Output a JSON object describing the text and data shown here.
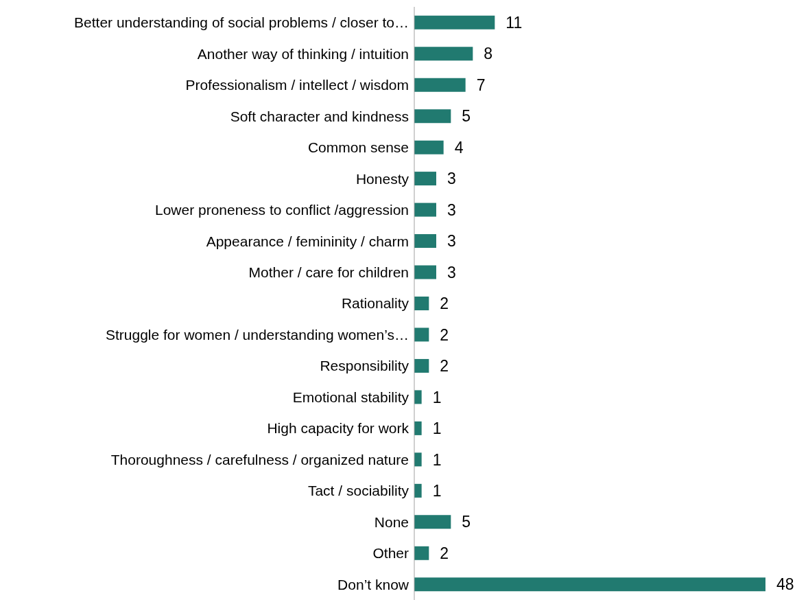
{
  "chart_data": {
    "type": "bar",
    "orientation": "horizontal",
    "categories": [
      "Better understanding of social problems / closer to…",
      "Another way of thinking / intuition",
      "Professionalism / intellect / wisdom",
      "Soft character and kindness",
      "Common sense",
      "Honesty",
      "Lower proneness to conflict /aggression",
      "Appearance / femininity / charm",
      "Mother / care for children",
      "Rationality",
      "Struggle for women / understanding women’s…",
      "Responsibility",
      "Emotional stability",
      "High capacity for work",
      "Thoroughness  /  carefulness /  organized nature",
      "Tact / sociability",
      "None",
      "Other",
      "Don’t know"
    ],
    "values": [
      11,
      8,
      7,
      5,
      4,
      3,
      3,
      3,
      3,
      2,
      2,
      2,
      1,
      1,
      1,
      1,
      5,
      2,
      48
    ],
    "color": "#217a70",
    "data_labels": true,
    "grid": false,
    "legend": false
  }
}
